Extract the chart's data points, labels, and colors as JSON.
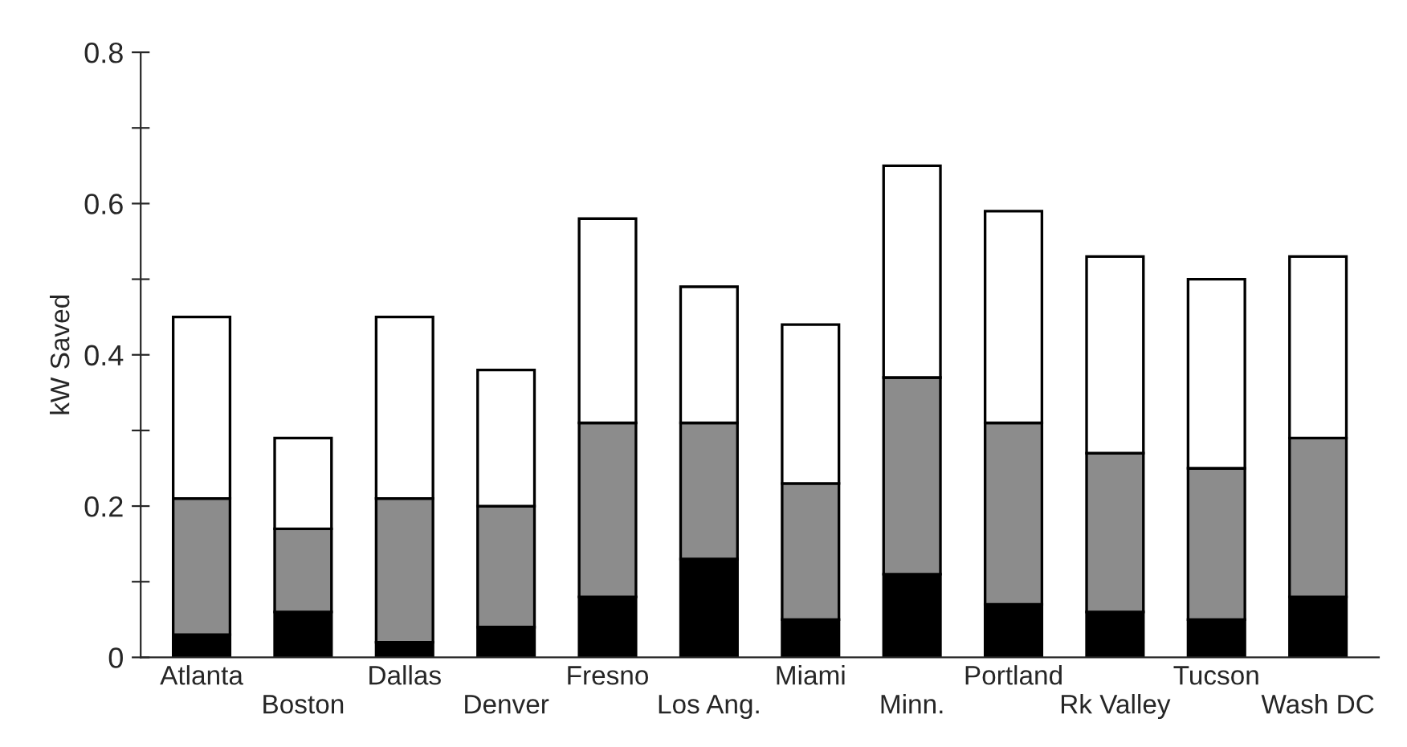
{
  "chart_data": {
    "type": "bar",
    "stacked": true,
    "ylabel": "kW Saved",
    "categories": [
      "Atlanta",
      "Boston",
      "Dallas",
      "Denver",
      "Fresno",
      "Los Ang.",
      "Miami",
      "Minn.",
      "Portland",
      "Rk Valley",
      "Tucson",
      "Wash DC"
    ],
    "series": [
      {
        "color": "#000000",
        "values": [
          0.03,
          0.06,
          0.02,
          0.04,
          0.08,
          0.13,
          0.05,
          0.11,
          0.07,
          0.06,
          0.05,
          0.08
        ]
      },
      {
        "color": "#8c8c8c",
        "values": [
          0.18,
          0.11,
          0.19,
          0.16,
          0.23,
          0.18,
          0.18,
          0.26,
          0.24,
          0.21,
          0.2,
          0.21
        ]
      },
      {
        "color": "#ffffff",
        "values": [
          0.24,
          0.12,
          0.24,
          0.18,
          0.27,
          0.18,
          0.21,
          0.28,
          0.28,
          0.26,
          0.25,
          0.24
        ]
      }
    ],
    "ylim": [
      0,
      0.8
    ],
    "yticks": [
      0,
      {
        "value": 0.1,
        "label": null
      },
      {
        "value": 0.2,
        "label": "0.2"
      },
      {
        "value": 0.3,
        "label": null
      },
      {
        "value": 0.4,
        "label": "0.4"
      },
      {
        "value": 0.5,
        "label": null
      },
      {
        "value": 0.6,
        "label": "0.6"
      },
      {
        "value": 0.7,
        "label": null
      },
      {
        "value": 0.8,
        "label": "0.8"
      }
    ],
    "grid": false,
    "legend": false
  }
}
